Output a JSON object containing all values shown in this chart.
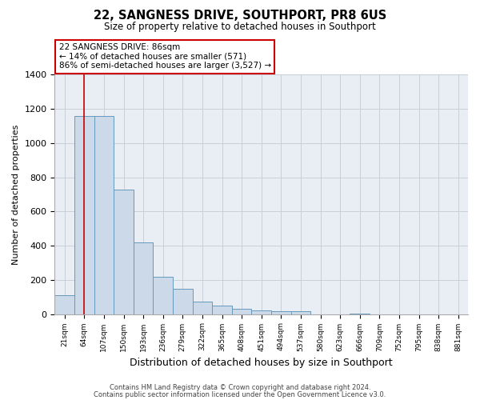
{
  "title": "22, SANGNESS DRIVE, SOUTHPORT, PR8 6US",
  "subtitle": "Size of property relative to detached houses in Southport",
  "xlabel": "Distribution of detached houses by size in Southport",
  "ylabel": "Number of detached properties",
  "bins": [
    "21sqm",
    "64sqm",
    "107sqm",
    "150sqm",
    "193sqm",
    "236sqm",
    "279sqm",
    "322sqm",
    "365sqm",
    "408sqm",
    "451sqm",
    "494sqm",
    "537sqm",
    "580sqm",
    "623sqm",
    "666sqm",
    "709sqm",
    "752sqm",
    "795sqm",
    "838sqm",
    "881sqm"
  ],
  "values": [
    108,
    1160,
    1160,
    730,
    420,
    220,
    150,
    75,
    50,
    30,
    20,
    15,
    15,
    0,
    0,
    5,
    0,
    0,
    0,
    0,
    0
  ],
  "bar_color": "#ccd9e8",
  "bar_edge_color": "#6699bb",
  "marker_line_color": "#cc0000",
  "annotation_title": "22 SANGNESS DRIVE: 86sqm",
  "annotation_line1": "← 14% of detached houses are smaller (571)",
  "annotation_line2": "86% of semi-detached houses are larger (3,527) →",
  "annotation_box_color": "#ffffff",
  "annotation_box_edge": "#cc0000",
  "ylim": [
    0,
    1400
  ],
  "yticks": [
    0,
    200,
    400,
    600,
    800,
    1000,
    1200,
    1400
  ],
  "footer1": "Contains HM Land Registry data © Crown copyright and database right 2024.",
  "footer2": "Contains public sector information licensed under the Open Government Licence v3.0.",
  "bg_color": "#e8eef4",
  "grid_color": "#c8d0da"
}
